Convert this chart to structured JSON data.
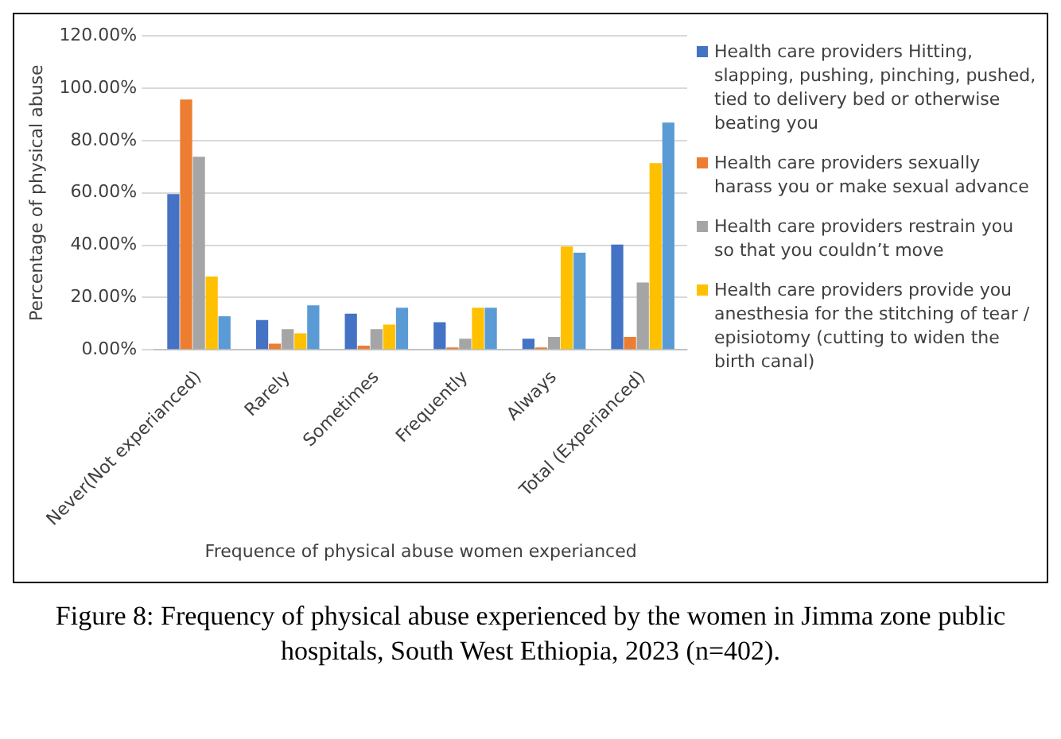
{
  "chart_data": {
    "type": "bar",
    "ylabel": "Percentage of physical abuse",
    "xlabel": "Frequence of physical abuse women experianced",
    "categories": [
      "Never(Not experianced)",
      "Rarely",
      "Sometimes",
      "Frequently",
      "Always",
      "Total (Experianced)"
    ],
    "series": [
      {
        "name": "Health care providers Hitting, slapping, pushing, pinching, pushed, tied to delivery bed or otherwise beating you",
        "color": "#4472c4",
        "values": [
          59.5,
          11.4,
          13.8,
          10.5,
          4.2,
          40.2
        ]
      },
      {
        "name": "Health care providers sexually harass  you or make sexual advance",
        "color": "#ed7d31",
        "values": [
          95.7,
          2.3,
          1.6,
          0.9,
          0.9,
          4.9
        ]
      },
      {
        "name": "Health care providers restrain you so that you couldn’t move",
        "color": "#a5a5a5",
        "values": [
          73.8,
          7.9,
          7.9,
          4.2,
          4.9,
          25.7
        ]
      },
      {
        "name": "Health care providers provide you anesthesia for the stitching of tear / episiotomy (cutting to widen the birth canal)",
        "color": "#ffc000",
        "values": [
          28,
          6.3,
          9.6,
          16.1,
          39.5,
          71.4
        ]
      },
      {
        "color": "#5b9bd5",
        "values": [
          12.8,
          17,
          16.1,
          16.1,
          37.1,
          86.9
        ]
      }
    ],
    "ylim": [
      0,
      120
    ],
    "yticks": [
      {
        "value": 0,
        "label": "0.00%"
      },
      {
        "value": 20,
        "label": "20.00%"
      },
      {
        "value": 40,
        "label": "40.00%"
      },
      {
        "value": 60,
        "label": "60.00%"
      },
      {
        "value": 80,
        "label": "80.00%"
      },
      {
        "value": 100,
        "label": "100.00%"
      },
      {
        "value": 120,
        "label": "120.00%"
      }
    ],
    "grid": "y",
    "legend": "right",
    "annotations": [
      "Figure 8: Frequency of physical abuse experienced by the women in Jimma zone public hospitals, South West Ethiopia, 2023 (n=402)."
    ]
  }
}
